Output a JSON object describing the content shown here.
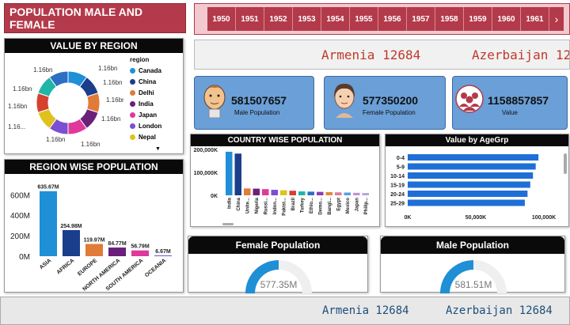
{
  "header": {
    "title": "POPULATION MALE AND FEMALE"
  },
  "years": [
    "1950",
    "1951",
    "1952",
    "1953",
    "1954",
    "1955",
    "1956",
    "1957",
    "1958",
    "1959",
    "1960",
    "1961"
  ],
  "year_next_icon": "chevron-right-icon",
  "ticker_top": {
    "items": [
      "Armenia 12684",
      "Azerbaijan 12"
    ]
  },
  "ticker_bottom": {
    "items": [
      "Armenia 12684",
      "Azerbaijan 12684"
    ]
  },
  "value_by_region": {
    "title": "VALUE BY REGION",
    "legend_title": "region",
    "legend": [
      {
        "name": "Canada",
        "color": "#1f8fd6"
      },
      {
        "name": "China",
        "color": "#1a3e8c"
      },
      {
        "name": "Delhi",
        "color": "#e07b39"
      },
      {
        "name": "India",
        "color": "#6b1f7a"
      },
      {
        "name": "Japan",
        "color": "#e0399c"
      },
      {
        "name": "London",
        "color": "#7a4fd1"
      },
      {
        "name": "Nepal",
        "color": "#e0c21f"
      }
    ],
    "slice_labels": [
      "1.16bn",
      "1.16bn",
      "1.16bn",
      "1.16bn",
      "1.16bn",
      "1.16bn",
      "1.16...",
      "1.16bn",
      "1.16bn",
      "1.16bn"
    ]
  },
  "cards": [
    {
      "value": "581507657",
      "label": "Male Population",
      "icon": "male-avatar-icon"
    },
    {
      "value": "577350200",
      "label": "Female Population",
      "icon": "female-avatar-icon"
    },
    {
      "value": "1158857857",
      "label": "Value",
      "icon": "group-icon"
    }
  ],
  "region_wise": {
    "title": "REGION WISE POPULATION",
    "chart_data": {
      "type": "bar",
      "categories": [
        "ASIA",
        "AFRICA",
        "EUROPE",
        "NORTH AMERICA",
        "SOUTH AMERICA",
        "OCEANIA"
      ],
      "values": [
        635.67,
        254.98,
        119.97,
        84.77,
        56.79,
        6.67
      ],
      "labels": [
        "635.67M",
        "254.98M",
        "119.97M",
        "84.77M",
        "56.79M",
        "6.67M"
      ],
      "colors": [
        "#1f8fd6",
        "#1a3e8c",
        "#e07b39",
        "#6b1f7a",
        "#e0399c",
        "#7a4fd1"
      ],
      "yticks": [
        "0M",
        "200M",
        "400M",
        "600M"
      ],
      "ytick_values": [
        0,
        200,
        400,
        600
      ],
      "ylim": [
        0,
        680
      ]
    }
  },
  "country_wise": {
    "title": "COUNTRY WISE POPULATION",
    "chart_data": {
      "type": "bar",
      "categories": [
        "India",
        "China",
        "Unite...",
        "Nigeria",
        "Russi...",
        "Indon...",
        "Pakist...",
        "Brazil",
        "Turkey",
        "Ethio...",
        "Demo...",
        "Bangl...",
        "Egypt",
        "Mexico",
        "Japan",
        "Philip..."
      ],
      "values": [
        190000,
        182000,
        30000,
        29000,
        27000,
        24000,
        22000,
        20000,
        17000,
        16000,
        15000,
        14000,
        13000,
        12000,
        11000,
        10000
      ],
      "colors": [
        "#1f8fd6",
        "#1a3e8c",
        "#e07b39",
        "#6b1f7a",
        "#e0399c",
        "#7a4fd1",
        "#e0c21f",
        "#d6402f",
        "#1fb5a8",
        "#2c6fc4",
        "#8f3cb0",
        "#e08a39",
        "#e07b9c",
        "#4fa3e0",
        "#c48fd6",
        "#b0a5e0"
      ],
      "yticks": [
        "0K",
        "100,000K",
        "200,000K"
      ],
      "ytick_values": [
        0,
        100000,
        200000
      ],
      "ylim": [
        0,
        200000
      ]
    }
  },
  "age_group": {
    "title": "Value by AgeGrp",
    "chart_data": {
      "type": "bar",
      "categories": [
        "0-4",
        "5-9",
        "10-14",
        "15-19",
        "20-24",
        "25-29"
      ],
      "values": [
        96000,
        94000,
        92000,
        90000,
        88000,
        86000
      ],
      "xticks": [
        "0K",
        "50,000K",
        "100,000K"
      ],
      "xtick_values": [
        0,
        50000,
        100000
      ],
      "xlim": [
        0,
        100000
      ],
      "color": "#1f6fd6"
    }
  },
  "female_gauge": {
    "title": "Female Population",
    "value_label": "577.35M",
    "fraction": 0.5,
    "color": "#1f8fd6"
  },
  "male_gauge": {
    "title": "Male Population",
    "value_label": "581.51M",
    "fraction": 0.5,
    "color": "#1f8fd6"
  }
}
